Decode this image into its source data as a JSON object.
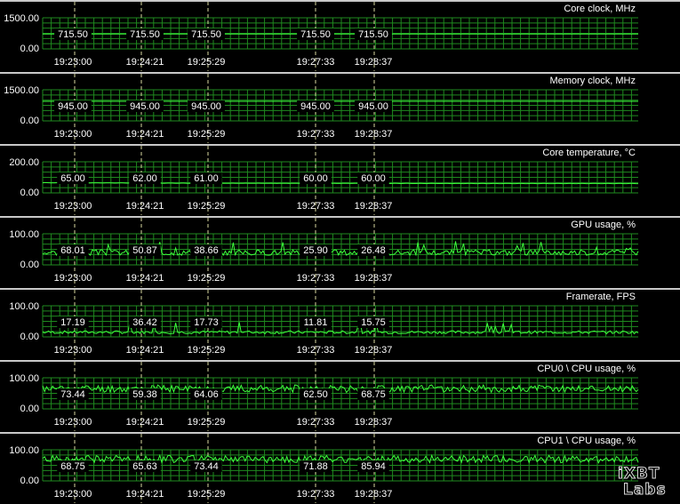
{
  "logo": {
    "line1": "iXBT",
    "line2": "Labs"
  },
  "panels": [
    {
      "title": "Core clock, MHz",
      "ymax_label": "1500.00",
      "ymin_label": "0.00",
      "ymax": 1500,
      "times": [
        "19:23:00",
        "19:24:21",
        "19:25:29",
        "19:27:33",
        "19:28:37"
      ],
      "value_labels": [
        "715.50",
        "715.50",
        "715.50",
        "715.50",
        "715.50"
      ],
      "series": {
        "type": "flat",
        "value": 715.5
      }
    },
    {
      "title": "Memory clock, MHz",
      "ymax_label": "1500.00",
      "ymin_label": "0.00",
      "ymax": 1500,
      "times": [
        "19:23:00",
        "19:24:21",
        "19:25:29",
        "19:27:33",
        "19:28:37"
      ],
      "value_labels": [
        "945.00",
        "945.00",
        "945.00",
        "945.00",
        "945.00"
      ],
      "series": {
        "type": "flat",
        "value": 945
      }
    },
    {
      "title": "Core temperature, °C",
      "ymax_label": "200.00",
      "ymin_label": "0.00",
      "ymax": 200,
      "times": [
        "19:23:00",
        "19:24:21",
        "19:25:29",
        "19:27:33",
        "19:28:37"
      ],
      "value_labels": [
        "65.00",
        "62.00",
        "61.00",
        "60.00",
        "60.00"
      ],
      "series": {
        "type": "slope",
        "points": [
          65,
          62,
          61,
          60,
          60
        ]
      }
    },
    {
      "title": "GPU usage, %",
      "ymax_label": "100.00",
      "ymin_label": "0.00",
      "ymax": 100,
      "times": [
        "19:23:00",
        "19:24:21",
        "19:25:29",
        "19:27:33",
        "19:28:37"
      ],
      "value_labels": [
        "68.01",
        "50.87",
        "38.66",
        "25.90",
        "26.48"
      ],
      "series": {
        "type": "noisy",
        "base": 40,
        "amp": 9,
        "spikes": 0.05,
        "seed": 3
      }
    },
    {
      "title": "Framerate, FPS",
      "ymax_label": "100.00",
      "ymin_label": "0.00",
      "ymax": 100,
      "times": [
        "19:23:00",
        "19:24:21",
        "19:25:29",
        "19:27:33",
        "19:28:37"
      ],
      "value_labels": [
        "17.19",
        "36.42",
        "17.73",
        "11.81",
        "15.75"
      ],
      "series": {
        "type": "noisy",
        "base": 15,
        "amp": 5,
        "spikes": 0.03,
        "seed": 7
      }
    },
    {
      "title": "CPU0 \\ CPU usage, %",
      "ymax_label": "100.00",
      "ymin_label": "0.00",
      "ymax": 100,
      "times": [
        "19:23:00",
        "19:24:21",
        "19:25:29",
        "19:27:33",
        "19:28:37"
      ],
      "value_labels": [
        "73.44",
        "59.38",
        "64.06",
        "62.50",
        "68.75"
      ],
      "series": {
        "type": "noisy",
        "base": 65,
        "amp": 12,
        "spikes": 0.0,
        "seed": 11
      }
    },
    {
      "title": "CPU1 \\ CPU usage, %",
      "ymax_label": "100.00",
      "ymin_label": "0.00",
      "ymax": 100,
      "times": [
        "19:23:00",
        "19:24:21",
        "19:25:29",
        "19:27:33",
        "19:28:37"
      ],
      "value_labels": [
        "68.75",
        "65.63",
        "73.44",
        "71.88",
        "85.94"
      ],
      "series": {
        "type": "noisy",
        "base": 70,
        "amp": 12,
        "spikes": 0.0,
        "seed": 19
      }
    }
  ]
}
